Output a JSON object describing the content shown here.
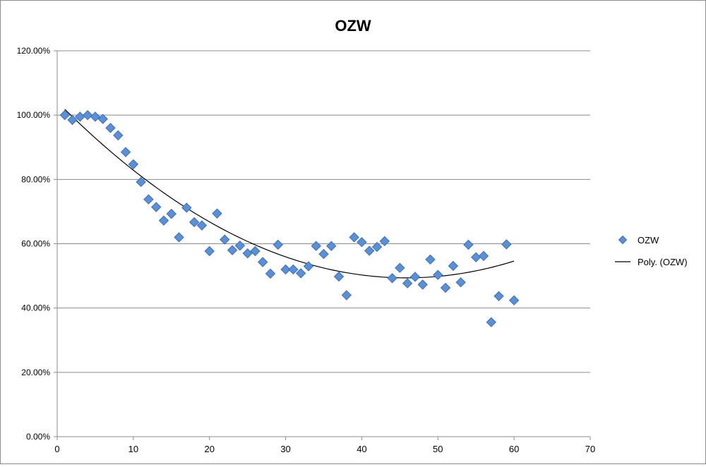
{
  "chart_data": {
    "type": "scatter",
    "title": "OZW",
    "xlabel": "",
    "ylabel": "",
    "xlim": [
      0,
      70
    ],
    "ylim": [
      0,
      1.2
    ],
    "x_ticks": [
      0,
      10,
      20,
      30,
      40,
      50,
      60,
      70
    ],
    "x_tick_labels": [
      "0",
      "10",
      "20",
      "30",
      "40",
      "50",
      "60",
      "70"
    ],
    "y_ticks": [
      0,
      0.2,
      0.4,
      0.6,
      0.8,
      1.0,
      1.2
    ],
    "y_tick_labels": [
      "0.00%",
      "20.00%",
      "40.00%",
      "60.00%",
      "80.00%",
      "100.00%",
      "120.00%"
    ],
    "grid": "horizontal",
    "legend_position": "right",
    "series": [
      {
        "name": "OZW",
        "kind": "scatter",
        "marker": "diamond",
        "color": "#5b8fd6",
        "x": [
          1,
          2,
          3,
          4,
          5,
          6,
          7,
          8,
          9,
          10,
          11,
          12,
          13,
          14,
          15,
          16,
          17,
          18,
          19,
          20,
          21,
          22,
          23,
          24,
          25,
          26,
          27,
          28,
          29,
          30,
          31,
          32,
          33,
          34,
          35,
          36,
          37,
          38,
          39,
          40,
          41,
          42,
          43,
          44,
          45,
          46,
          47,
          48,
          49,
          50,
          51,
          52,
          53,
          54,
          55,
          56,
          57,
          58,
          59,
          60
        ],
        "y": [
          1.0,
          0.985,
          0.995,
          1.0,
          0.995,
          0.988,
          0.96,
          0.937,
          0.885,
          0.847,
          0.792,
          0.738,
          0.714,
          0.672,
          0.693,
          0.62,
          0.712,
          0.667,
          0.657,
          0.577,
          0.694,
          0.613,
          0.58,
          0.594,
          0.57,
          0.577,
          0.543,
          0.507,
          0.597,
          0.52,
          0.52,
          0.508,
          0.53,
          0.593,
          0.568,
          0.593,
          0.498,
          0.44,
          0.62,
          0.605,
          0.578,
          0.59,
          0.608,
          0.493,
          0.525,
          0.477,
          0.497,
          0.473,
          0.551,
          0.503,
          0.463,
          0.531,
          0.48,
          0.597,
          0.558,
          0.562,
          0.356,
          0.437,
          0.598,
          0.424
        ]
      },
      {
        "name": "Poly. (OZW)",
        "kind": "trendline",
        "color": "#000000",
        "fit": "polynomial-2",
        "x_range": [
          1,
          60
        ]
      }
    ]
  }
}
